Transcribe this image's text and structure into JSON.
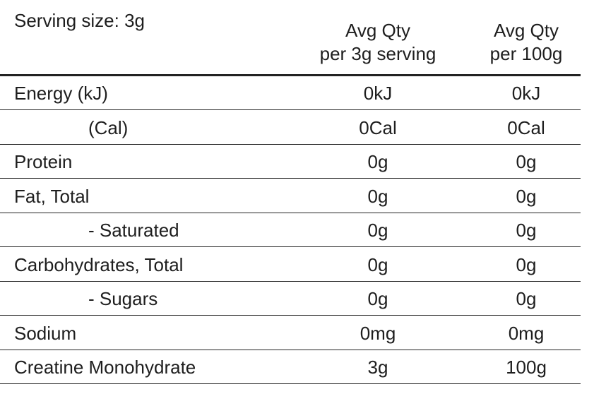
{
  "header": {
    "serving_size": "Serving size: 3g",
    "columns": [
      [
        "Avg Qty",
        "per 3g serving"
      ],
      [
        "Avg Qty",
        "per 100g"
      ]
    ]
  },
  "table": {
    "rows": [
      [
        "Energy (kJ)",
        "0kJ",
        "0kJ"
      ],
      [
        "(Cal)",
        "0Cal",
        "0Cal"
      ],
      [
        "Protein",
        "0g",
        "0g"
      ],
      [
        "Fat, Total",
        "0g",
        "0g"
      ],
      [
        "- Saturated",
        "0g",
        "0g"
      ],
      [
        "Carbohydrates, Total",
        "0g",
        "0g"
      ],
      [
        "- Sugars",
        "0g",
        "0g"
      ],
      [
        "Sodium",
        "0mg",
        "0mg"
      ],
      [
        "Creatine Monohydrate",
        "3g",
        "100g"
      ]
    ]
  }
}
